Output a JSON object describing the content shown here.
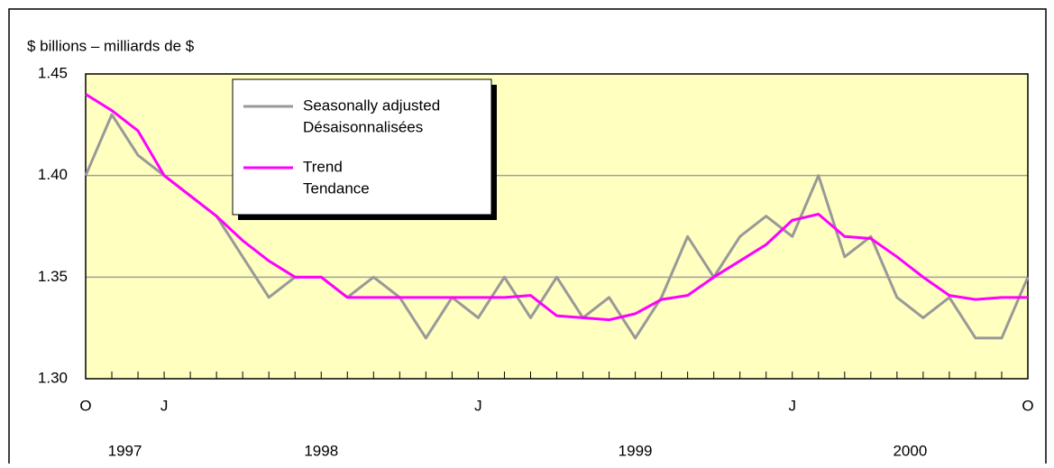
{
  "chart_data": {
    "type": "line",
    "y_label": "$ billions – milliards de $",
    "categories": [
      "O",
      null,
      null,
      "J",
      null,
      null,
      null,
      null,
      null,
      null,
      null,
      null,
      null,
      null,
      null,
      "J",
      null,
      null,
      null,
      null,
      null,
      null,
      null,
      null,
      null,
      null,
      null,
      "J",
      null,
      null,
      null,
      null,
      null,
      null,
      null,
      null,
      "O"
    ],
    "year_labels": [
      "1997",
      "1998",
      "1999",
      "2000"
    ],
    "series": [
      {
        "name": [
          "Seasonally adjusted",
          "Désaisonnalisées"
        ],
        "color": "#999999",
        "values": [
          1.4,
          1.43,
          1.41,
          1.4,
          1.39,
          1.38,
          1.36,
          1.34,
          1.35,
          1.35,
          1.34,
          1.35,
          1.34,
          1.32,
          1.34,
          1.33,
          1.35,
          1.33,
          1.35,
          1.33,
          1.34,
          1.32,
          1.34,
          1.37,
          1.35,
          1.37,
          1.38,
          1.37,
          1.4,
          1.36,
          1.37,
          1.34,
          1.33,
          1.34,
          1.32,
          1.32,
          1.35
        ]
      },
      {
        "name": [
          "Trend",
          "Tendance"
        ],
        "color": "#ff00ff",
        "values": [
          1.44,
          1.432,
          1.422,
          1.4,
          1.39,
          1.38,
          1.368,
          1.358,
          1.35,
          1.35,
          1.34,
          1.34,
          1.34,
          1.34,
          1.34,
          1.34,
          1.34,
          1.341,
          1.331,
          1.33,
          1.329,
          1.332,
          1.339,
          1.341,
          1.35,
          1.358,
          1.366,
          1.378,
          1.381,
          1.37,
          1.369,
          1.36,
          1.35,
          1.341,
          1.339,
          1.34,
          1.34
        ]
      }
    ],
    "ylim": [
      1.3,
      1.45
    ],
    "yticks": [
      {
        "value": 1.3,
        "label": "1.30"
      },
      {
        "value": 1.35,
        "label": "1.35"
      },
      {
        "value": 1.4,
        "label": "1.40"
      },
      {
        "value": 1.45,
        "label": "1.45"
      }
    ],
    "grid": true
  }
}
